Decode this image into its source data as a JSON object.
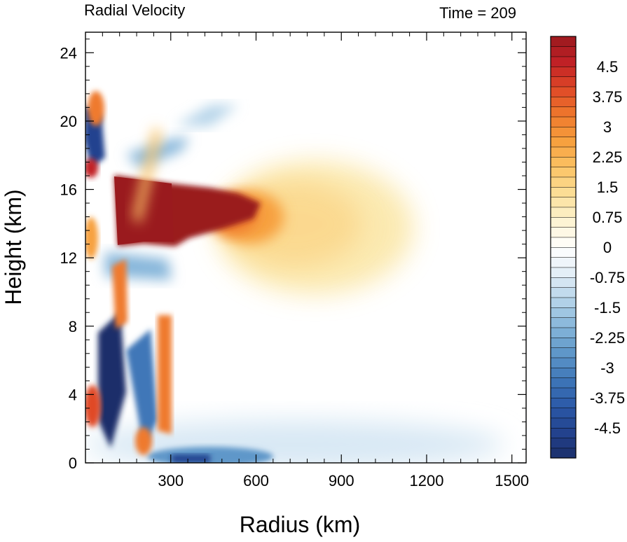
{
  "chart_data": {
    "type": "heatmap",
    "title_left": "Radial Velocity",
    "title_right": "Time = 209",
    "xlabel": "Radius (km)",
    "ylabel": "Height (km)",
    "xlim": [
      0,
      1550
    ],
    "ylim": [
      0,
      25.2
    ],
    "x_ticks": [
      300,
      600,
      900,
      1200,
      1500
    ],
    "y_ticks": [
      0,
      4,
      8,
      12,
      16,
      20,
      24
    ],
    "x_tick_labels": [
      "300",
      "600",
      "900",
      "1200",
      "1500"
    ],
    "y_tick_labels": [
      "0",
      "4",
      "8",
      "12",
      "16",
      "20",
      "24"
    ],
    "colorbar": {
      "min": -5.25,
      "max": 5.25,
      "step": 0.25,
      "labels": [
        "4.5",
        "3.75",
        "3",
        "2.25",
        "1.5",
        "0.75",
        "0",
        "-0.75",
        "-1.5",
        "-2.25",
        "-3",
        "-3.75",
        "-4.5"
      ],
      "label_values": [
        4.5,
        3.75,
        3,
        2.25,
        1.5,
        0.75,
        0,
        -0.75,
        -1.5,
        -2.25,
        -3,
        -3.75,
        -4.5
      ],
      "colors_low_to_high": [
        "#1b2f6a",
        "#23438f",
        "#2c5aa8",
        "#3f77b8",
        "#5f97c9",
        "#86b6da",
        "#b5d4e9",
        "#e3eef7",
        "#ffffff",
        "#fdf3d2",
        "#fbe09a",
        "#fbc467",
        "#f7a13f",
        "#ef7a2d",
        "#e04a27",
        "#c22126",
        "#9a1a1e"
      ]
    },
    "features": [
      {
        "kind": "outflow",
        "x_range": [
          110,
          560
        ],
        "z_range": [
          12.5,
          16.8
        ],
        "peak": 5.5
      },
      {
        "kind": "outflow",
        "x_range": [
          560,
          1060
        ],
        "z_range": [
          9.5,
          17.5
        ],
        "peak": 1.3
      },
      {
        "kind": "inflow",
        "x_range": [
          100,
          950
        ],
        "z_range": [
          0,
          2.2
        ],
        "peak": -2.0
      },
      {
        "kind": "inflow",
        "x_range": [
          100,
          170
        ],
        "z_range": [
          0.5,
          8.5
        ],
        "peak": -5.0
      },
      {
        "kind": "eyewall-bands",
        "x_range": [
          0,
          310
        ],
        "z_range": [
          0,
          22
        ],
        "peak": 4.0
      }
    ]
  }
}
